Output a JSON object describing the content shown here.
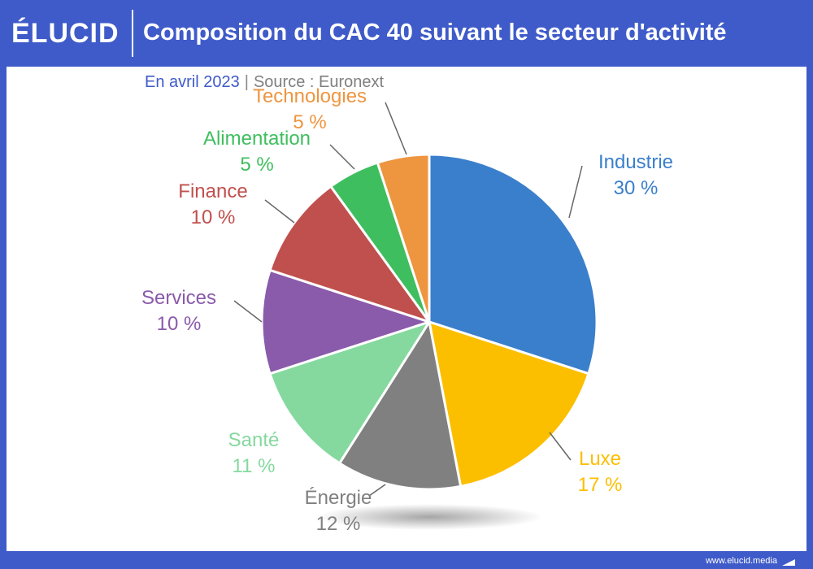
{
  "brand": {
    "logo": "ÉLUCID",
    "footer_url": "www.elucid.media"
  },
  "header": {
    "title": "Composition du CAC 40 suivant le secteur d'activité"
  },
  "subtitle": {
    "date": "En avril 2023",
    "separator": "|",
    "source": "Source : Euronext"
  },
  "chart_data": {
    "type": "pie",
    "title": "Composition du CAC 40 suivant le secteur d'activité",
    "slices": [
      {
        "label": "Industrie",
        "value": 30,
        "value_label": "30 %",
        "color": "#3a7fcc"
      },
      {
        "label": "Luxe",
        "value": 17,
        "value_label": "17 %",
        "color": "#fbbf00"
      },
      {
        "label": "Énergie",
        "value": 12,
        "value_label": "12 %",
        "color": "#808080"
      },
      {
        "label": "Santé",
        "value": 11,
        "value_label": "11 %",
        "color": "#85d99f"
      },
      {
        "label": "Services",
        "value": 10,
        "value_label": "10 %",
        "color": "#8a5aab"
      },
      {
        "label": "Finance",
        "value": 10,
        "value_label": "10 %",
        "color": "#c0504d"
      },
      {
        "label": "Alimentation",
        "value": 5,
        "value_label": "5 %",
        "color": "#3fbe5f"
      },
      {
        "label": "Technologies",
        "value": 5,
        "value_label": "5 %",
        "color": "#ee9540"
      }
    ]
  }
}
